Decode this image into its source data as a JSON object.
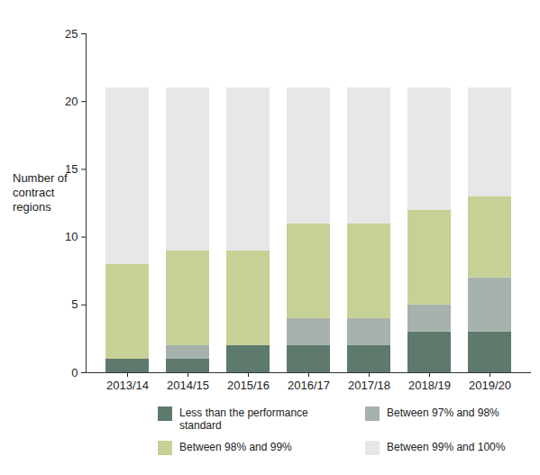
{
  "chart_data": {
    "type": "bar",
    "stacked": true,
    "y_label": "Number of contract regions",
    "categories": [
      "2013/14",
      "2014/15",
      "2015/16",
      "2016/17",
      "2017/18",
      "2018/19",
      "2019/20"
    ],
    "series": [
      {
        "name": "Less than the performance standard",
        "color": "#5e7a6d",
        "values": [
          1,
          1,
          2,
          2,
          2,
          3,
          3
        ]
      },
      {
        "name": "Between 97% and 98%",
        "color": "#a8b2ac",
        "values": [
          0,
          1,
          0,
          2,
          2,
          2,
          4
        ]
      },
      {
        "name": "Between 98% and 99%",
        "color": "#c6d196",
        "values": [
          7,
          7,
          7,
          7,
          7,
          7,
          6
        ]
      },
      {
        "name": "Between 99% and 100%",
        "color": "#e6e7e8",
        "values": [
          13,
          12,
          12,
          10,
          10,
          9,
          8
        ]
      }
    ],
    "ylim": [
      0,
      25
    ],
    "yticks": [
      0,
      5,
      10,
      15,
      20,
      25
    ],
    "grid": false,
    "legend": "bottom"
  }
}
